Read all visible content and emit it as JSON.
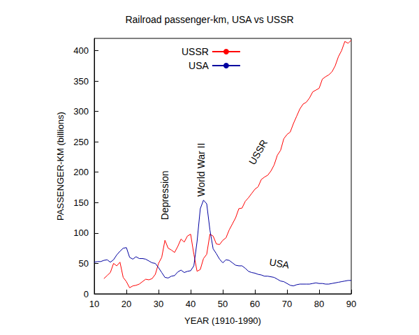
{
  "chart_data": {
    "type": "line",
    "title": "Railroad passenger-km, USA vs USSR",
    "x_label": "YEAR (1910-1990)",
    "y_label": "PASSENGER-KM (billions)",
    "xlim": [
      10,
      90
    ],
    "xticks": [
      10,
      20,
      30,
      40,
      50,
      60,
      70,
      80,
      90
    ],
    "ylim": [
      0,
      420
    ],
    "yticks": [
      0,
      50,
      100,
      150,
      200,
      250,
      300,
      350,
      400
    ],
    "grid": false,
    "legend": "top",
    "series": [
      {
        "name": "USSR",
        "color": "#ff0000",
        "x": [
          13,
          14,
          15,
          16,
          17,
          18,
          19,
          20,
          21,
          22,
          23,
          24,
          25,
          26,
          27,
          28,
          29,
          30,
          31,
          32,
          33,
          34,
          35,
          36,
          37,
          38,
          39,
          40,
          41,
          42,
          43,
          44,
          45,
          46,
          47,
          48,
          49,
          50,
          51,
          52,
          53,
          54,
          55,
          56,
          57,
          58,
          59,
          60,
          61,
          62,
          63,
          64,
          65,
          66,
          67,
          68,
          69,
          70,
          71,
          72,
          73,
          74,
          75,
          76,
          77,
          78,
          79,
          80,
          81,
          82,
          83,
          84,
          85,
          86,
          87,
          88,
          89,
          90
        ],
        "values": [
          25,
          30,
          35,
          50,
          46,
          52,
          27,
          20,
          10,
          13,
          14,
          16,
          20,
          24,
          23,
          25,
          32,
          50,
          60,
          88,
          75,
          72,
          68,
          78,
          90,
          85,
          95,
          98,
          65,
          37,
          40,
          58,
          65,
          98,
          95,
          82,
          81,
          88,
          92,
          105,
          115,
          125,
          140,
          141,
          152,
          158,
          165,
          172,
          176,
          188,
          192,
          195,
          202,
          212,
          228,
          236,
          255,
          262,
          266,
          280,
          292,
          304,
          312,
          315,
          322,
          332,
          335,
          338,
          353,
          357,
          360,
          365,
          375,
          390,
          400,
          415,
          412,
          417
        ]
      },
      {
        "name": "USA",
        "color": "#0000a0",
        "x": [
          10,
          11,
          12,
          13,
          14,
          15,
          16,
          17,
          18,
          19,
          20,
          21,
          22,
          23,
          24,
          25,
          26,
          27,
          28,
          29,
          30,
          31,
          32,
          33,
          34,
          35,
          36,
          37,
          38,
          39,
          40,
          41,
          42,
          43,
          44,
          45,
          46,
          47,
          48,
          49,
          50,
          51,
          52,
          53,
          54,
          55,
          56,
          57,
          58,
          59,
          60,
          61,
          62,
          63,
          64,
          65,
          66,
          67,
          68,
          69,
          70,
          71,
          72,
          73,
          74,
          75,
          76,
          77,
          78,
          79,
          80,
          81,
          82,
          83,
          84,
          85,
          86,
          87,
          88,
          89,
          90
        ],
        "values": [
          52,
          53,
          53,
          55,
          56,
          52,
          56,
          64,
          70,
          75,
          76,
          60,
          57,
          61,
          58,
          58,
          57,
          54,
          51,
          50,
          43,
          35,
          27,
          26,
          29,
          30,
          36,
          39,
          35,
          37,
          38,
          46,
          86,
          140,
          154,
          148,
          105,
          74,
          66,
          57,
          51,
          56,
          55,
          51,
          47,
          46,
          46,
          42,
          37,
          35,
          34,
          32,
          31,
          29,
          29,
          28,
          27,
          24,
          21,
          20,
          17,
          14,
          13,
          15,
          16,
          16,
          16,
          16,
          17,
          18,
          17,
          17,
          16,
          16,
          17,
          18,
          19,
          20,
          21,
          22,
          22
        ]
      }
    ],
    "annotations": [
      {
        "text": "Depression",
        "x": 32,
        "y": 162
      },
      {
        "text": "World War II",
        "x": 43.3,
        "y": 204
      },
      {
        "text": "USSR",
        "x": 61,
        "y": 233
      },
      {
        "text": "USA",
        "x": 67.6,
        "y": 50
      }
    ]
  }
}
